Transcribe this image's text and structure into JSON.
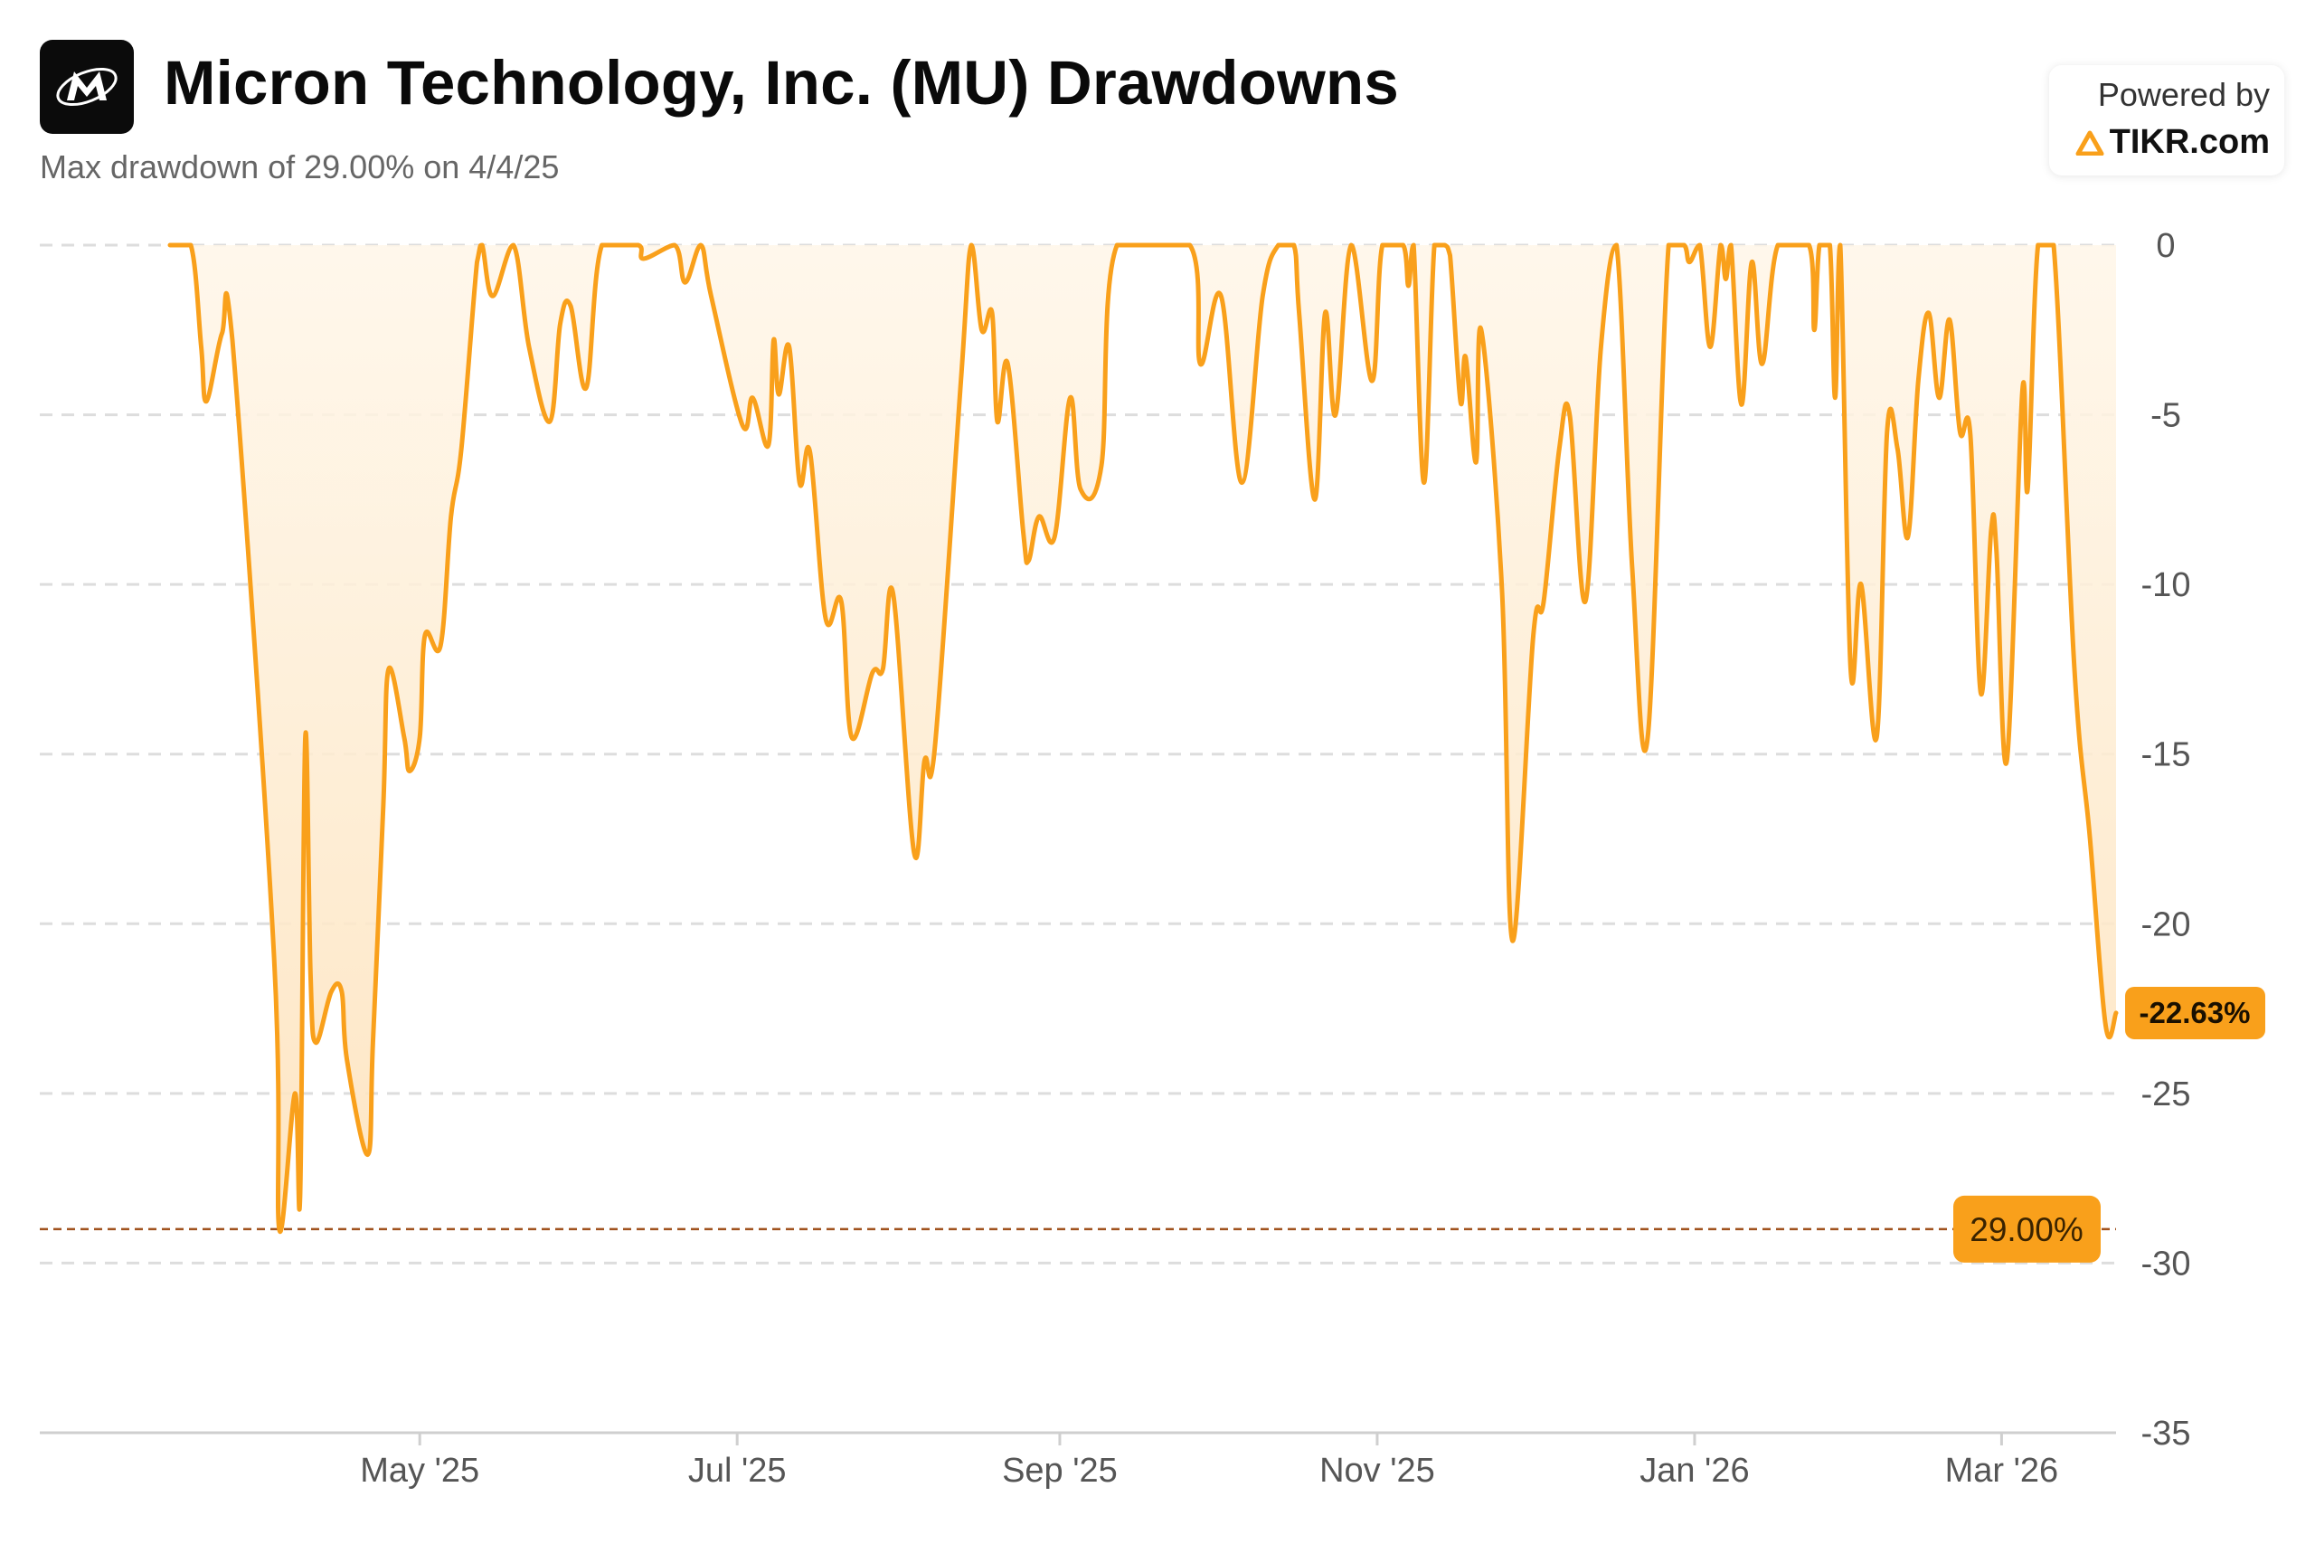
{
  "header": {
    "title": "Micron Technology, Inc. (MU) Drawdowns",
    "subtitle": "Max drawdown of 29.00% on 4/4/25"
  },
  "branding": {
    "powered_by": "Powered by",
    "brand_name": "TIKR.com",
    "logo_icon": "micron-logo-icon",
    "brand_icon": "tikr-triangle-icon"
  },
  "colors": {
    "line": "#F9A01B",
    "fill": "#FDEBD0",
    "max_line": "#A0521E",
    "badge": "#F9A01B",
    "grid": "#dddddd"
  },
  "chart_data": {
    "type": "area",
    "title": "Micron Technology, Inc. (MU) Drawdowns",
    "ylabel": "",
    "xlabel": "",
    "ylim": [
      -35,
      0
    ],
    "yticks": [
      0,
      -5,
      -10,
      -15,
      -20,
      -25,
      -30,
      -35
    ],
    "ytick_labels": [
      "0",
      "-5",
      "-10",
      "-15",
      "-20",
      "-25",
      "-30",
      "-35"
    ],
    "xlim": [
      "2025-03-14",
      "2026-03-23"
    ],
    "xticks": [
      {
        "date": "2025-05-01",
        "label": "May '25"
      },
      {
        "date": "2025-07-01",
        "label": "Jul '25"
      },
      {
        "date": "2025-09-01",
        "label": "Sep '25"
      },
      {
        "date": "2025-11-01",
        "label": "Nov '25"
      },
      {
        "date": "2026-01-01",
        "label": "Jan '26"
      },
      {
        "date": "2026-03-01",
        "label": "Mar '26"
      }
    ],
    "grid": true,
    "max_drawdown": {
      "value": -29.0,
      "label": "29.00%",
      "date": "2025-04-04"
    },
    "current": {
      "value": -22.63,
      "label": "-22.63%"
    },
    "series": [
      {
        "unit": "%",
        "points": [
          [
            "2025-03-14",
            0
          ],
          [
            "2025-03-18",
            0
          ],
          [
            "2025-03-20",
            -3
          ],
          [
            "2025-03-21",
            -4.6
          ],
          [
            "2025-03-24",
            -2.6
          ],
          [
            "2025-03-26",
            -2.8
          ],
          [
            "2025-04-03",
            -21.0
          ],
          [
            "2025-04-04",
            -29.0
          ],
          [
            "2025-04-07",
            -25.0
          ],
          [
            "2025-04-08",
            -28.0
          ],
          [
            "2025-04-09",
            -14.5
          ],
          [
            "2025-04-10",
            -21.5
          ],
          [
            "2025-04-11",
            -23.5
          ],
          [
            "2025-04-14",
            -22.0
          ],
          [
            "2025-04-16",
            -22.0
          ],
          [
            "2025-04-17",
            -24.0
          ],
          [
            "2025-04-21",
            -26.8
          ],
          [
            "2025-04-22",
            -23.5
          ],
          [
            "2025-04-24",
            -16.5
          ],
          [
            "2025-04-25",
            -12.5
          ],
          [
            "2025-04-28",
            -14.5
          ],
          [
            "2025-04-29",
            -15.5
          ],
          [
            "2025-05-01",
            -14.5
          ],
          [
            "2025-05-02",
            -11.5
          ],
          [
            "2025-05-05",
            -11.8
          ],
          [
            "2025-05-07",
            -8.0
          ],
          [
            "2025-05-09",
            -6.0
          ],
          [
            "2025-05-12",
            -0.5
          ],
          [
            "2025-05-13",
            0
          ],
          [
            "2025-05-15",
            -1.5
          ],
          [
            "2025-05-19",
            0
          ],
          [
            "2025-05-22",
            -3.0
          ],
          [
            "2025-05-26",
            -5.2
          ],
          [
            "2025-05-28",
            -2.3
          ],
          [
            "2025-05-30",
            -1.8
          ],
          [
            "2025-06-02",
            -4.2
          ],
          [
            "2025-06-05",
            0
          ],
          [
            "2025-06-12",
            0
          ],
          [
            "2025-06-13",
            -0.4
          ],
          [
            "2025-06-19",
            0
          ],
          [
            "2025-06-21",
            -1.1
          ],
          [
            "2025-06-24",
            0
          ],
          [
            "2025-06-26",
            -1.5
          ],
          [
            "2025-07-02",
            -5.3
          ],
          [
            "2025-07-04",
            -4.5
          ],
          [
            "2025-07-07",
            -5.9
          ],
          [
            "2025-07-08",
            -2.8
          ],
          [
            "2025-07-09",
            -4.4
          ],
          [
            "2025-07-11",
            -3.0
          ],
          [
            "2025-07-13",
            -7.0
          ],
          [
            "2025-07-15",
            -6.1
          ],
          [
            "2025-07-18",
            -11.0
          ],
          [
            "2025-07-21",
            -10.5
          ],
          [
            "2025-07-23",
            -14.5
          ],
          [
            "2025-07-27",
            -12.6
          ],
          [
            "2025-07-29",
            -12.5
          ],
          [
            "2025-07-31",
            -10.3
          ],
          [
            "2025-08-04",
            -17.9
          ],
          [
            "2025-08-06",
            -15.2
          ],
          [
            "2025-08-08",
            -14.8
          ],
          [
            "2025-08-13",
            -4.0
          ],
          [
            "2025-08-15",
            0
          ],
          [
            "2025-08-17",
            -2.5
          ],
          [
            "2025-08-19",
            -2.0
          ],
          [
            "2025-08-20",
            -5.2
          ],
          [
            "2025-08-22",
            -3.5
          ],
          [
            "2025-08-25",
            -8.5
          ],
          [
            "2025-08-26",
            -9.3
          ],
          [
            "2025-08-28",
            -8.0
          ],
          [
            "2025-08-31",
            -8.6
          ],
          [
            "2025-09-03",
            -4.5
          ],
          [
            "2025-09-05",
            -7.2
          ],
          [
            "2025-09-09",
            -6.5
          ],
          [
            "2025-09-12",
            0
          ],
          [
            "2025-09-26",
            0
          ],
          [
            "2025-09-28",
            -3.5
          ],
          [
            "2025-10-02",
            -1.5
          ],
          [
            "2025-10-06",
            -7.0
          ],
          [
            "2025-10-10",
            -1.5
          ],
          [
            "2025-10-13",
            0
          ],
          [
            "2025-10-16",
            0
          ],
          [
            "2025-10-17",
            -2.0
          ],
          [
            "2025-10-20",
            -7.5
          ],
          [
            "2025-10-22",
            -2.0
          ],
          [
            "2025-10-24",
            -5.0
          ],
          [
            "2025-10-27",
            0
          ],
          [
            "2025-10-31",
            -4.0
          ],
          [
            "2025-11-02",
            0
          ],
          [
            "2025-11-06",
            0
          ],
          [
            "2025-11-07",
            -1.2
          ],
          [
            "2025-11-08",
            0
          ],
          [
            "2025-11-10",
            -7.0
          ],
          [
            "2025-11-12",
            0
          ],
          [
            "2025-11-14",
            0
          ],
          [
            "2025-11-15",
            -0.3
          ],
          [
            "2025-11-17",
            -4.6
          ],
          [
            "2025-11-18",
            -3.3
          ],
          [
            "2025-11-20",
            -6.4
          ],
          [
            "2025-11-21",
            -2.5
          ],
          [
            "2025-11-25",
            -10.2
          ],
          [
            "2025-11-27",
            -20.5
          ],
          [
            "2025-12-01",
            -11.5
          ],
          [
            "2025-12-03",
            -10.5
          ],
          [
            "2025-12-06",
            -6.0
          ],
          [
            "2025-12-08",
            -5.0
          ],
          [
            "2025-12-11",
            -10.5
          ],
          [
            "2025-12-14",
            -3.0
          ],
          [
            "2025-12-17",
            0
          ],
          [
            "2025-12-20",
            -9.5
          ],
          [
            "2025-12-23",
            -14.5
          ],
          [
            "2025-12-27",
            0
          ],
          [
            "2025-12-30",
            0
          ],
          [
            "2025-12-31",
            -0.5
          ],
          [
            "2026-01-02",
            0
          ],
          [
            "2026-01-04",
            -3.0
          ],
          [
            "2026-01-06",
            0
          ],
          [
            "2026-01-07",
            -1.0
          ],
          [
            "2026-01-08",
            0
          ],
          [
            "2026-01-10",
            -4.7
          ],
          [
            "2026-01-12",
            -0.5
          ],
          [
            "2026-01-14",
            -3.5
          ],
          [
            "2026-01-17",
            0
          ],
          [
            "2026-01-23",
            0
          ],
          [
            "2026-01-24",
            -2.5
          ],
          [
            "2026-01-25",
            0
          ],
          [
            "2026-01-27",
            0
          ],
          [
            "2026-01-28",
            -4.5
          ],
          [
            "2026-01-29",
            0
          ],
          [
            "2026-01-31",
            -12.5
          ],
          [
            "2026-02-02",
            -10.0
          ],
          [
            "2026-02-05",
            -14.5
          ],
          [
            "2026-02-07",
            -5.5
          ],
          [
            "2026-02-09",
            -6.0
          ],
          [
            "2026-02-11",
            -8.6
          ],
          [
            "2026-02-13",
            -4.0
          ],
          [
            "2026-02-15",
            -2.0
          ],
          [
            "2026-02-17",
            -4.5
          ],
          [
            "2026-02-19",
            -2.2
          ],
          [
            "2026-02-21",
            -5.5
          ],
          [
            "2026-02-23",
            -5.6
          ],
          [
            "2026-02-25",
            -13.2
          ],
          [
            "2026-02-27",
            -8.4
          ],
          [
            "2026-02-28",
            -9.0
          ],
          [
            "2026-03-02",
            -15.2
          ],
          [
            "2026-03-05",
            -4.3
          ],
          [
            "2026-03-06",
            -7.2
          ],
          [
            "2026-03-08",
            0
          ],
          [
            "2026-03-11",
            0
          ],
          [
            "2026-03-15",
            -12.5
          ],
          [
            "2026-03-18",
            -17.5
          ],
          [
            "2026-03-21",
            -23.0
          ],
          [
            "2026-03-23",
            -22.63
          ]
        ]
      }
    ]
  }
}
